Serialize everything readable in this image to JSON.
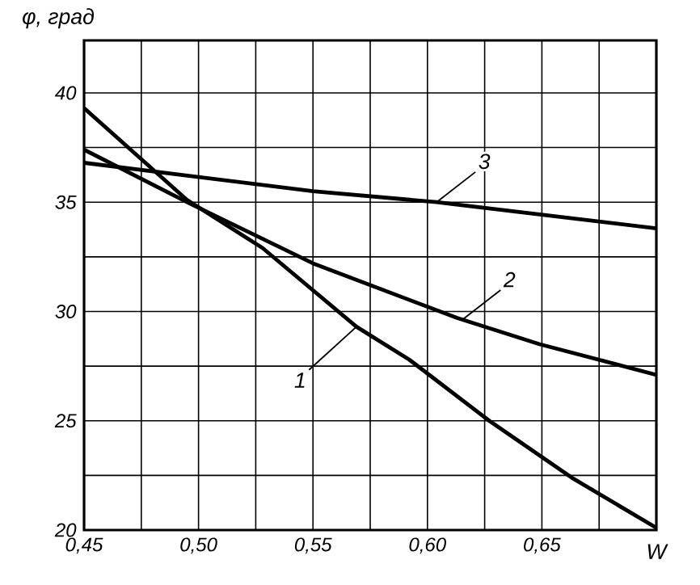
{
  "chart_data": {
    "type": "line",
    "xlabel": "W",
    "ylabel": "φ, град",
    "xlim": [
      0.45,
      0.7
    ],
    "ylim": [
      20,
      42.4
    ],
    "xticks": [
      {
        "value": 0.45,
        "label": "0,45"
      },
      {
        "value": 0.475,
        "label": null
      },
      {
        "value": 0.5,
        "label": "0,50"
      },
      {
        "value": 0.525,
        "label": null
      },
      {
        "value": 0.55,
        "label": "0,55"
      },
      {
        "value": 0.575,
        "label": null
      },
      {
        "value": 0.6,
        "label": "0,60"
      },
      {
        "value": 0.625,
        "label": null
      },
      {
        "value": 0.65,
        "label": "0,65"
      },
      {
        "value": 0.675,
        "label": null
      },
      {
        "value": 0.7,
        "label": null
      }
    ],
    "yticks": [
      20,
      {
        "value": 22.5,
        "label": null
      },
      25,
      {
        "value": 27.5,
        "label": null
      },
      30,
      {
        "value": 32.5,
        "label": null
      },
      35,
      {
        "value": 37.5,
        "label": null
      },
      40
    ],
    "grid": true,
    "series": [
      {
        "color": "#000000",
        "x": [
          0.45,
          0.495,
          0.528,
          0.569,
          0.592,
          0.627,
          0.663,
          0.7
        ],
        "values": [
          39.3,
          35.1,
          32.9,
          29.3,
          27.8,
          25.0,
          22.4,
          20.1
        ]
      },
      {
        "color": "#000000",
        "x": [
          0.45,
          0.495,
          0.55,
          0.613,
          0.649,
          0.7
        ],
        "values": [
          37.4,
          35.0,
          32.2,
          29.7,
          28.5,
          27.1
        ]
      },
      {
        "color": "#000000",
        "x": [
          0.45,
          0.55,
          0.604,
          0.7
        ],
        "values": [
          36.8,
          35.5,
          35.0,
          33.8
        ]
      }
    ],
    "annotations": [
      {
        "text": "1",
        "x": 0.569,
        "y": 29.3
      },
      {
        "text": "2",
        "x": 0.615,
        "y": 29.6
      },
      {
        "text": "3",
        "x": 0.604,
        "y": 35.0
      }
    ]
  }
}
